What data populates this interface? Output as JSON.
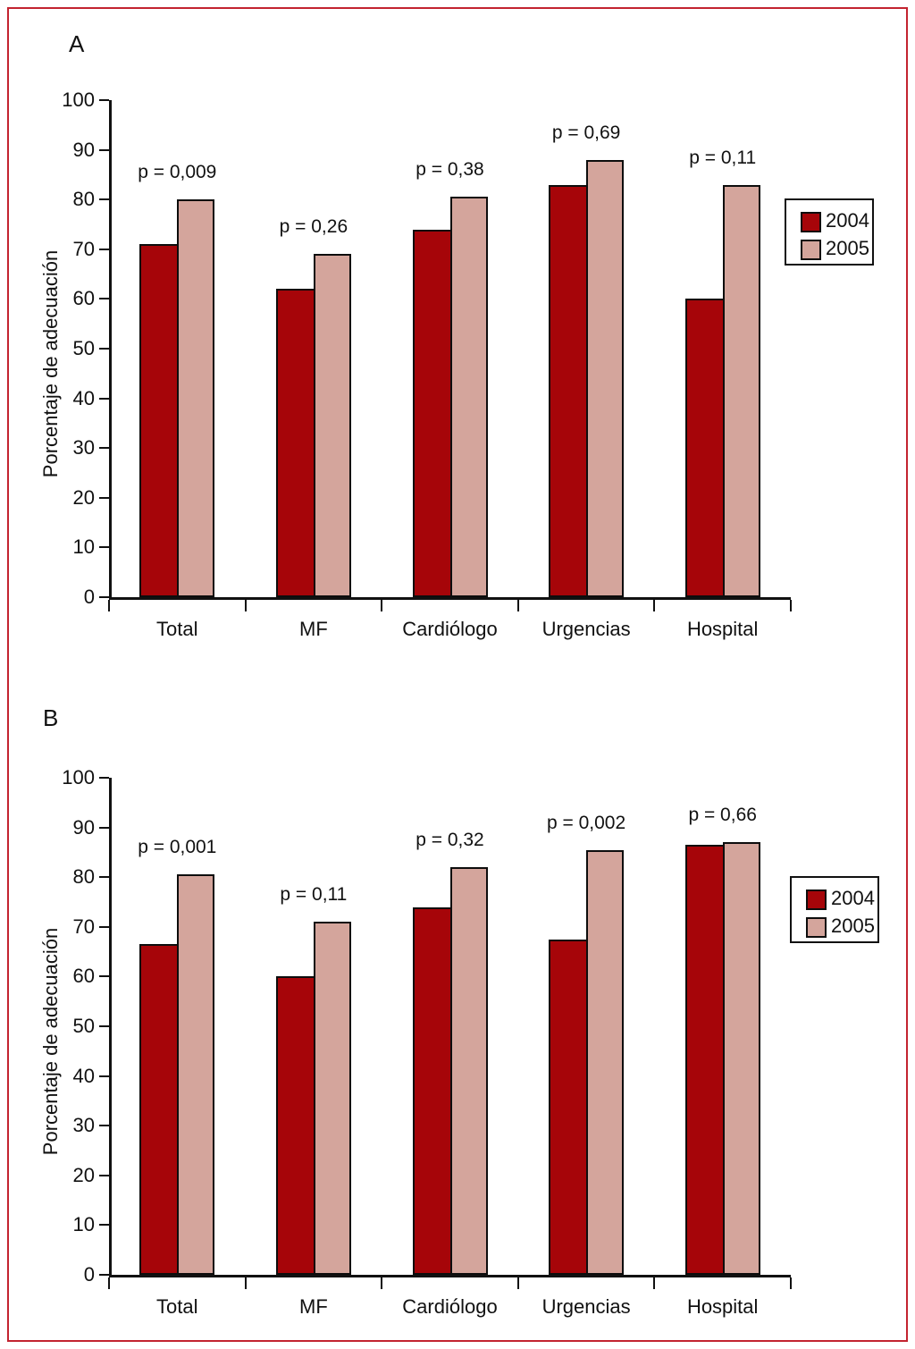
{
  "figure_title": "",
  "colors": {
    "series_2004": "#a60509",
    "series_2005": "#d4a59c",
    "bar_outline": "#0d0d0d",
    "frame_border": "#c32330",
    "text": "#111111"
  },
  "chart_data": [
    {
      "type": "bar",
      "panel_label": "A",
      "ylabel": "Porcentaje de adecuación",
      "xlabel": "",
      "ylim": [
        0,
        100
      ],
      "yticks": [
        0,
        10,
        20,
        30,
        40,
        50,
        60,
        70,
        80,
        90,
        100
      ],
      "grid": false,
      "legend_position": "right",
      "categories": [
        "Total",
        "MF",
        "Cardiólogo",
        "Urgencias",
        "Hospital"
      ],
      "series": [
        {
          "name": "2004",
          "values": [
            71,
            62,
            74,
            83,
            60
          ]
        },
        {
          "name": "2005",
          "values": [
            80,
            69,
            80.5,
            88,
            83
          ]
        }
      ],
      "p_values": [
        "p = 0,009",
        "p = 0,26",
        "p = 0,38",
        "p = 0,69",
        "p = 0,11"
      ]
    },
    {
      "type": "bar",
      "panel_label": "B",
      "ylabel": "Porcentaje de adecuación",
      "xlabel": "",
      "ylim": [
        0,
        100
      ],
      "yticks": [
        0,
        10,
        20,
        30,
        40,
        50,
        60,
        70,
        80,
        90,
        100
      ],
      "grid": false,
      "legend_position": "right",
      "categories": [
        "Total",
        "MF",
        "Cardiólogo",
        "Urgencias",
        "Hospital"
      ],
      "series": [
        {
          "name": "2004",
          "values": [
            66.5,
            60,
            74,
            67.5,
            86.5
          ]
        },
        {
          "name": "2005",
          "values": [
            80.5,
            71,
            82,
            85.5,
            87
          ]
        }
      ],
      "p_values": [
        "p = 0,001",
        "p = 0,11",
        "p = 0,32",
        "p = 0,002",
        "p = 0,66"
      ]
    }
  ]
}
